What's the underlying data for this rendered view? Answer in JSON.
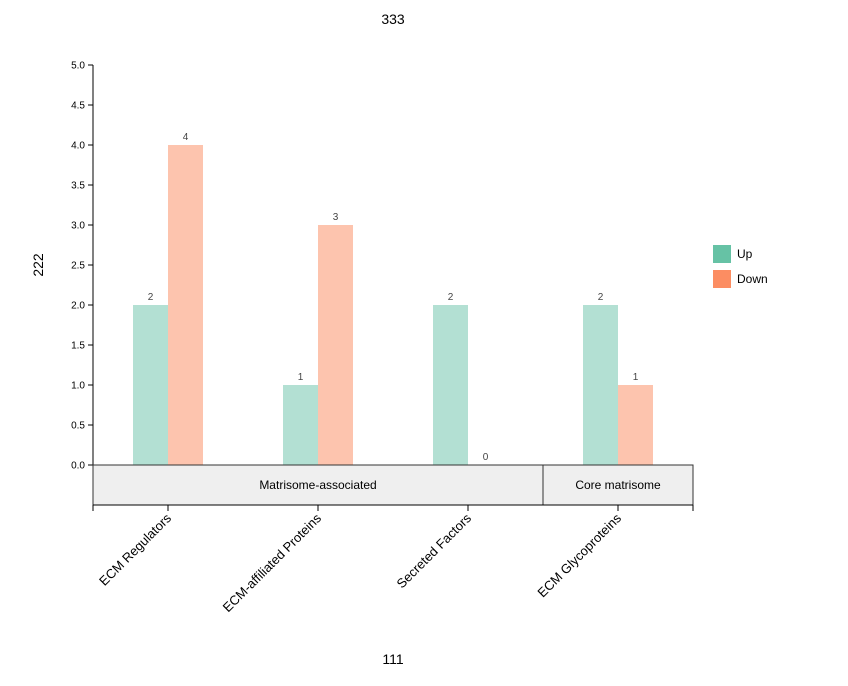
{
  "chart_data": {
    "type": "bar",
    "title": "333",
    "xlabel": "111",
    "ylabel": "222",
    "categories": [
      "ECM Regulators",
      "ECM-affiliated Proteins",
      "Secreted Factors",
      "ECM Glycoproteins"
    ],
    "series": [
      {
        "name": "Up",
        "values": [
          2,
          1,
          2,
          2
        ],
        "color": "#66c2a5",
        "bar_color": "#b3e0d3"
      },
      {
        "name": "Down",
        "values": [
          4,
          3,
          0,
          1
        ],
        "color": "#fc8d62",
        "bar_color": "#fdc4ae"
      }
    ],
    "groups": [
      {
        "label": "Matrisome-associated",
        "categories": [
          "ECM Regulators",
          "ECM-affiliated Proteins",
          "Secreted Factors"
        ]
      },
      {
        "label": "Core matrisome",
        "categories": [
          "ECM Glycoproteins"
        ]
      }
    ],
    "ylim": [
      0,
      5
    ],
    "yticks": [
      "0.0",
      "0.5",
      "1.0",
      "1.5",
      "2.0",
      "2.5",
      "3.0",
      "3.5",
      "4.0",
      "4.5",
      "5.0"
    ],
    "legend": "right",
    "grid": false
  }
}
